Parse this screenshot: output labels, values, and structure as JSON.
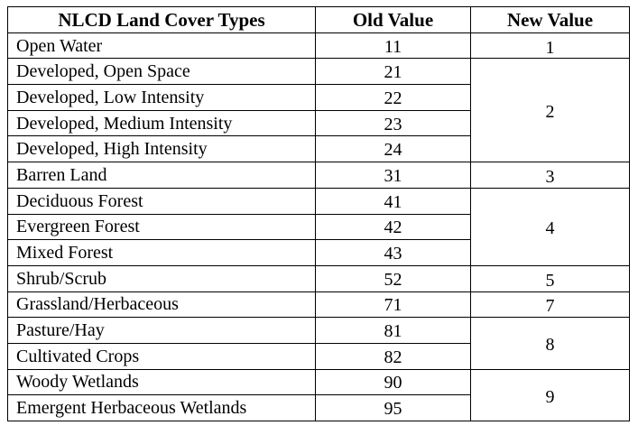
{
  "headers": {
    "type": "NLCD Land Cover Types",
    "old": "Old Value",
    "new": "New Value"
  },
  "rows": [
    {
      "type": "Open Water",
      "old": "11"
    },
    {
      "type": "Developed, Open Space",
      "old": "21"
    },
    {
      "type": "Developed, Low Intensity",
      "old": "22"
    },
    {
      "type": "Developed, Medium Intensity",
      "old": "23"
    },
    {
      "type": "Developed, High Intensity",
      "old": "24"
    },
    {
      "type": "Barren Land",
      "old": "31"
    },
    {
      "type": "Deciduous Forest",
      "old": "41"
    },
    {
      "type": "Evergreen Forest",
      "old": "42"
    },
    {
      "type": "Mixed Forest",
      "old": "43"
    },
    {
      "type": "Shrub/Scrub",
      "old": "52"
    },
    {
      "type": "Grassland/Herbaceous",
      "old": "71"
    },
    {
      "type": "Pasture/Hay",
      "old": "81"
    },
    {
      "type": "Cultivated Crops",
      "old": "82"
    },
    {
      "type": "Woody Wetlands",
      "old": "90"
    },
    {
      "type": "Emergent Herbaceous Wetlands",
      "old": "95"
    }
  ],
  "new_values": [
    "1",
    "2",
    "3",
    "4",
    "5",
    "7",
    "8",
    "9"
  ]
}
